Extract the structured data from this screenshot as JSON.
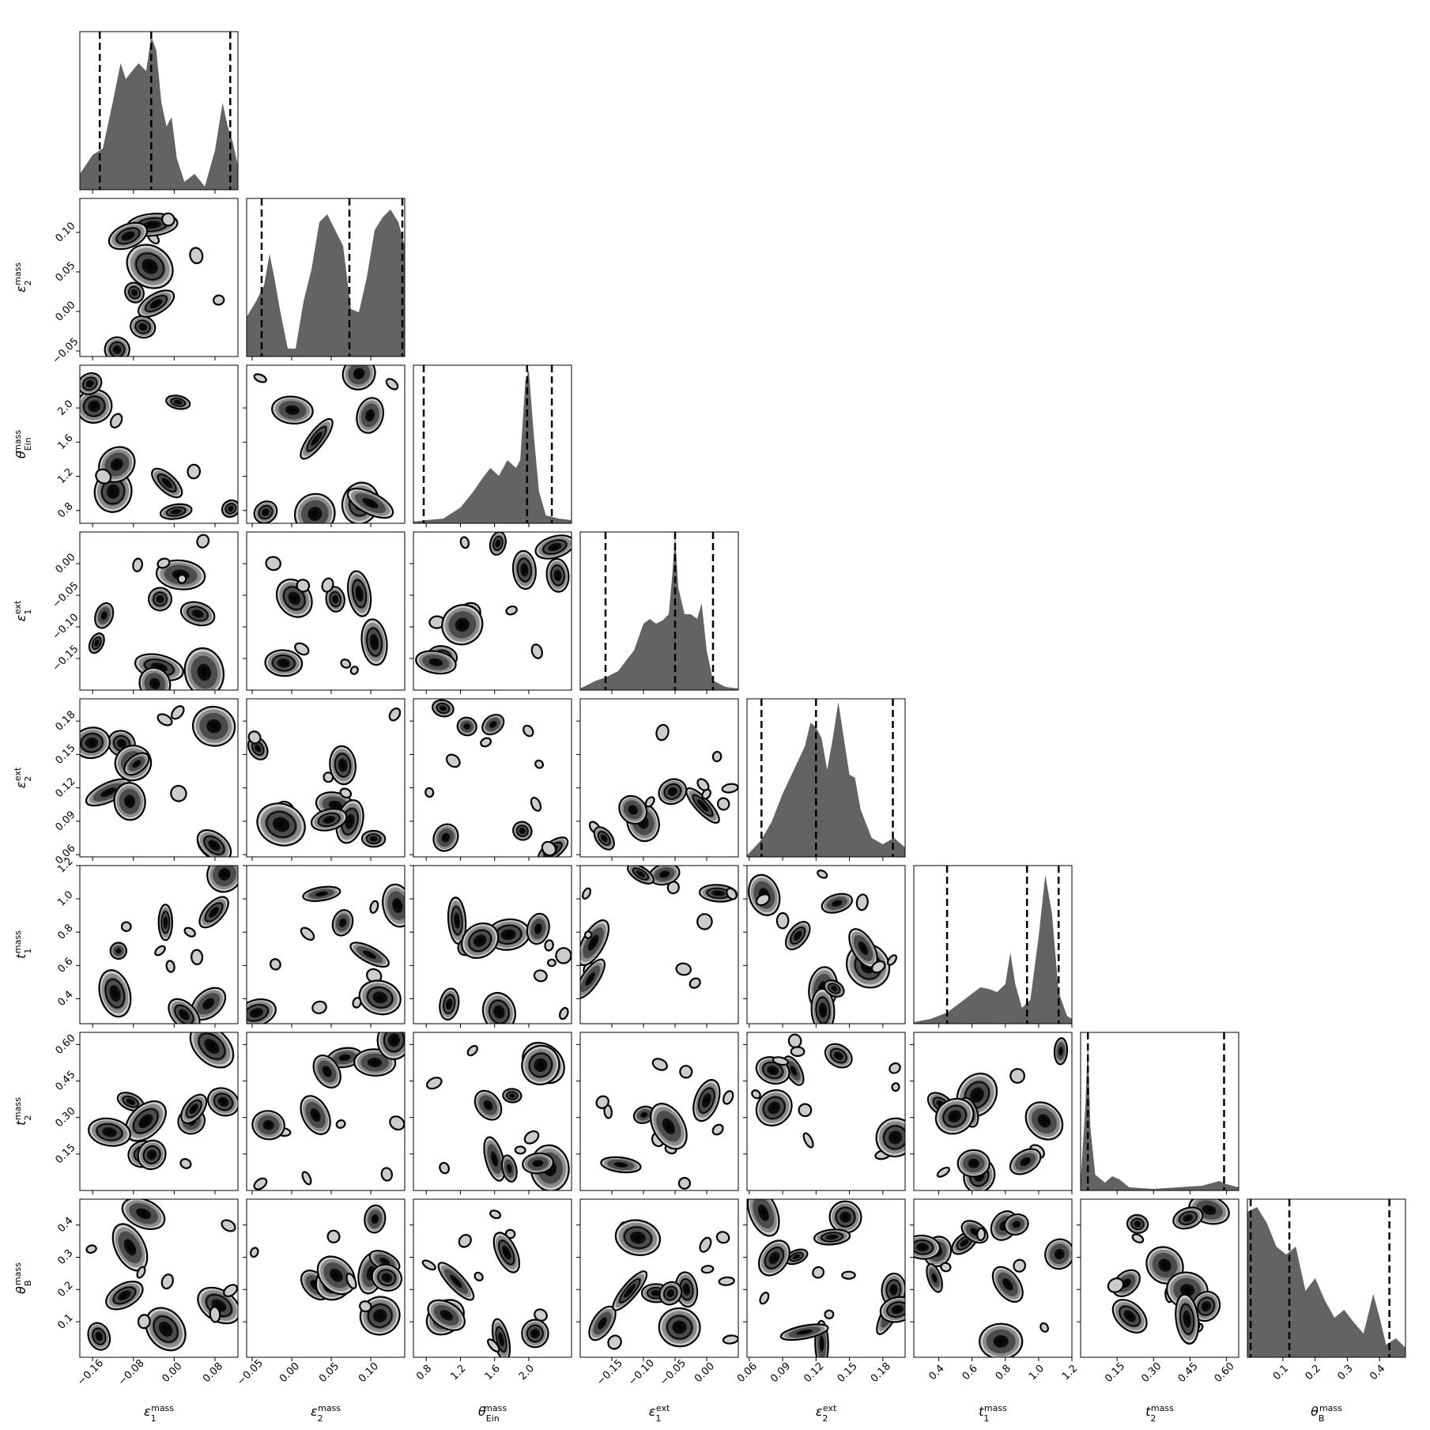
{
  "chart_data": {
    "type": "corner",
    "parameters": [
      {
        "sym": "ε",
        "sub": "1",
        "sup": "mass",
        "range": [
          -0.185,
          0.125
        ],
        "ticks": [
          -0.16,
          -0.08,
          0.0,
          0.08
        ],
        "tick_labels": [
          "−0.16",
          "−0.08",
          "0.00",
          "0.08"
        ],
        "quantiles": [
          -0.146,
          -0.045,
          0.11
        ]
      },
      {
        "sym": "ε",
        "sub": "2",
        "sup": "mass",
        "range": [
          -0.057,
          0.143
        ],
        "ticks": [
          -0.05,
          0.0,
          0.05,
          0.1
        ],
        "tick_labels": [
          "−0.05",
          "0.00",
          "0.05",
          "0.10"
        ],
        "quantiles": [
          -0.038,
          0.073,
          0.14
        ]
      },
      {
        "sym": "θ",
        "sub": "Ein",
        "sup": "mass",
        "range": [
          0.65,
          2.5
        ],
        "ticks": [
          0.8,
          1.2,
          1.6,
          2.0
        ],
        "tick_labels": [
          "0.8",
          "1.2",
          "1.6",
          "2.0"
        ],
        "quantiles": [
          0.77,
          1.98,
          2.27
        ]
      },
      {
        "sym": "ε",
        "sub": "1",
        "sup": "ext",
        "range": [
          -0.2,
          0.05
        ],
        "ticks": [
          -0.15,
          -0.1,
          -0.05,
          0.0
        ],
        "tick_labels": [
          "−0.15",
          "−0.10",
          "−0.05",
          "0.00"
        ],
        "quantiles": [
          -0.16,
          -0.05,
          0.01
        ]
      },
      {
        "sym": "ε",
        "sub": "2",
        "sup": "ext",
        "range": [
          0.058,
          0.2
        ],
        "ticks": [
          0.06,
          0.09,
          0.12,
          0.15,
          0.18
        ],
        "tick_labels": [
          "0.06",
          "0.09",
          "0.12",
          "0.15",
          "0.18"
        ],
        "quantiles": [
          0.071,
          0.12,
          0.189
        ]
      },
      {
        "sym": "t",
        "sub": "1",
        "sup": "mass",
        "range": [
          0.25,
          1.2
        ],
        "ticks": [
          0.4,
          0.6,
          0.8,
          1.0,
          1.2
        ],
        "tick_labels": [
          "0.4",
          "0.6",
          "0.8",
          "1.0",
          "1.2"
        ],
        "quantiles": [
          0.45,
          0.93,
          1.12
        ]
      },
      {
        "sym": "t",
        "sub": "2",
        "sup": "mass",
        "range": [
          0.0,
          0.65
        ],
        "ticks": [
          0.15,
          0.3,
          0.45,
          0.6
        ],
        "tick_labels": [
          "0.15",
          "0.30",
          "0.45",
          "0.60"
        ],
        "quantiles": [
          0.03,
          0.59
        ]
      },
      {
        "sym": "θ",
        "sub": "B",
        "sup": "mass",
        "range": [
          -0.01,
          0.48
        ],
        "ticks": [
          0.1,
          0.2,
          0.3,
          0.4
        ],
        "tick_labels": [
          "0.1",
          "0.2",
          "0.3",
          "0.4"
        ],
        "quantiles": [
          0.0,
          0.12,
          0.43
        ]
      }
    ],
    "histograms": [
      [
        [
          -0.185,
          0.1
        ],
        [
          -0.16,
          0.22
        ],
        [
          -0.14,
          0.26
        ],
        [
          -0.12,
          0.56
        ],
        [
          -0.105,
          0.8
        ],
        [
          -0.095,
          0.7
        ],
        [
          -0.08,
          0.76
        ],
        [
          -0.07,
          0.8
        ],
        [
          -0.055,
          0.75
        ],
        [
          -0.045,
          0.97
        ],
        [
          -0.035,
          0.88
        ],
        [
          -0.025,
          0.55
        ],
        [
          -0.015,
          0.4
        ],
        [
          -0.005,
          0.46
        ],
        [
          0.005,
          0.2
        ],
        [
          0.02,
          0.05
        ],
        [
          0.04,
          0.1
        ],
        [
          0.06,
          0.02
        ],
        [
          0.08,
          0.25
        ],
        [
          0.095,
          0.55
        ],
        [
          0.105,
          0.4
        ],
        [
          0.115,
          0.3
        ],
        [
          0.125,
          0.15
        ]
      ],
      [
        [
          -0.057,
          0.25
        ],
        [
          -0.045,
          0.35
        ],
        [
          -0.035,
          0.45
        ],
        [
          -0.028,
          0.65
        ],
        [
          -0.022,
          0.5
        ],
        [
          -0.015,
          0.3
        ],
        [
          -0.005,
          0.05
        ],
        [
          0.005,
          0.05
        ],
        [
          0.015,
          0.35
        ],
        [
          0.025,
          0.55
        ],
        [
          0.035,
          0.85
        ],
        [
          0.045,
          0.9
        ],
        [
          0.055,
          0.8
        ],
        [
          0.065,
          0.7
        ],
        [
          0.075,
          0.3
        ],
        [
          0.085,
          0.28
        ],
        [
          0.095,
          0.5
        ],
        [
          0.105,
          0.8
        ],
        [
          0.115,
          0.88
        ],
        [
          0.125,
          0.93
        ],
        [
          0.135,
          0.85
        ],
        [
          0.143,
          0.7
        ]
      ],
      [
        [
          0.65,
          0.01
        ],
        [
          0.8,
          0.02
        ],
        [
          1.0,
          0.03
        ],
        [
          1.2,
          0.1
        ],
        [
          1.35,
          0.2
        ],
        [
          1.45,
          0.28
        ],
        [
          1.55,
          0.35
        ],
        [
          1.65,
          0.3
        ],
        [
          1.75,
          0.4
        ],
        [
          1.85,
          0.35
        ],
        [
          1.9,
          0.4
        ],
        [
          1.96,
          0.9
        ],
        [
          2.0,
          0.97
        ],
        [
          2.06,
          0.55
        ],
        [
          2.12,
          0.2
        ],
        [
          2.2,
          0.05
        ],
        [
          2.35,
          0.03
        ],
        [
          2.5,
          0.02
        ]
      ],
      [
        [
          -0.2,
          0.01
        ],
        [
          -0.175,
          0.06
        ],
        [
          -0.16,
          0.08
        ],
        [
          -0.14,
          0.12
        ],
        [
          -0.125,
          0.2
        ],
        [
          -0.115,
          0.25
        ],
        [
          -0.1,
          0.42
        ],
        [
          -0.09,
          0.45
        ],
        [
          -0.08,
          0.42
        ],
        [
          -0.07,
          0.44
        ],
        [
          -0.06,
          0.48
        ],
        [
          -0.054,
          0.75
        ],
        [
          -0.05,
          0.98
        ],
        [
          -0.045,
          0.65
        ],
        [
          -0.035,
          0.48
        ],
        [
          -0.025,
          0.48
        ],
        [
          -0.015,
          0.45
        ],
        [
          -0.008,
          0.55
        ],
        [
          0.0,
          0.25
        ],
        [
          0.01,
          0.06
        ],
        [
          0.03,
          0.02
        ],
        [
          0.05,
          0.01
        ]
      ],
      [
        [
          0.058,
          0.01
        ],
        [
          0.07,
          0.1
        ],
        [
          0.08,
          0.22
        ],
        [
          0.09,
          0.4
        ],
        [
          0.1,
          0.55
        ],
        [
          0.11,
          0.7
        ],
        [
          0.115,
          0.85
        ],
        [
          0.12,
          0.82
        ],
        [
          0.125,
          0.75
        ],
        [
          0.13,
          0.55
        ],
        [
          0.135,
          0.75
        ],
        [
          0.14,
          0.98
        ],
        [
          0.145,
          0.75
        ],
        [
          0.15,
          0.52
        ],
        [
          0.155,
          0.5
        ],
        [
          0.16,
          0.3
        ],
        [
          0.17,
          0.12
        ],
        [
          0.18,
          0.08
        ],
        [
          0.19,
          0.12
        ],
        [
          0.2,
          0.06
        ]
      ],
      [
        [
          0.25,
          0.01
        ],
        [
          0.35,
          0.03
        ],
        [
          0.45,
          0.07
        ],
        [
          0.55,
          0.15
        ],
        [
          0.65,
          0.23
        ],
        [
          0.7,
          0.22
        ],
        [
          0.75,
          0.2
        ],
        [
          0.8,
          0.25
        ],
        [
          0.83,
          0.45
        ],
        [
          0.86,
          0.25
        ],
        [
          0.9,
          0.1
        ],
        [
          0.95,
          0.15
        ],
        [
          1.0,
          0.55
        ],
        [
          1.04,
          0.94
        ],
        [
          1.08,
          0.7
        ],
        [
          1.12,
          0.2
        ],
        [
          1.17,
          0.05
        ],
        [
          1.2,
          0.03
        ]
      ],
      [
        [
          0.0,
          0.05
        ],
        [
          0.02,
          0.55
        ],
        [
          0.03,
          0.95
        ],
        [
          0.04,
          0.4
        ],
        [
          0.06,
          0.1
        ],
        [
          0.1,
          0.05
        ],
        [
          0.13,
          0.09
        ],
        [
          0.16,
          0.07
        ],
        [
          0.2,
          0.02
        ],
        [
          0.3,
          0.01
        ],
        [
          0.5,
          0.03
        ],
        [
          0.57,
          0.06
        ],
        [
          0.6,
          0.04
        ],
        [
          0.65,
          0.02
        ]
      ],
      [
        [
          -0.01,
          0.92
        ],
        [
          0.02,
          0.95
        ],
        [
          0.05,
          0.85
        ],
        [
          0.08,
          0.7
        ],
        [
          0.11,
          0.65
        ],
        [
          0.14,
          0.7
        ],
        [
          0.17,
          0.42
        ],
        [
          0.2,
          0.5
        ],
        [
          0.23,
          0.36
        ],
        [
          0.26,
          0.25
        ],
        [
          0.29,
          0.3
        ],
        [
          0.32,
          0.22
        ],
        [
          0.35,
          0.15
        ],
        [
          0.38,
          0.4
        ],
        [
          0.4,
          0.25
        ],
        [
          0.42,
          0.08
        ],
        [
          0.45,
          0.12
        ],
        [
          0.48,
          0.06
        ]
      ]
    ]
  }
}
